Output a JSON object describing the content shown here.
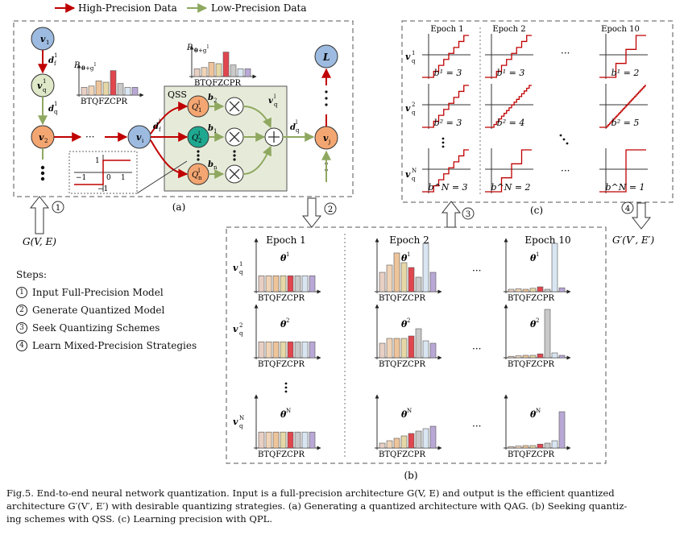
{
  "legend": {
    "high": "High-Precision Data",
    "low": "Low-Precision Data"
  },
  "panel_a": {
    "label": "(a)",
    "qss": "QSS",
    "nodes": {
      "v1": "v",
      "v1_sub": "1",
      "vq1": "v",
      "vq1_sub": "q",
      "vq1_sup": "1",
      "v2": "v",
      "v2_sub": "2",
      "vi": "v",
      "vi_sub": "i",
      "vj": "v",
      "vj_sub": "j",
      "L": "L"
    },
    "edge_df1": "d",
    "edge_df1_sub": "f",
    "edge_df1_sup": "1",
    "edge_dq1": "d",
    "edge_dq1_sub": "q",
    "edge_dq1_sup": "1",
    "edge_dfl": "d",
    "edge_dfl_sub": "f",
    "edge_dfl_sup": "l",
    "edge_dql": "d",
    "edge_dql_sub": "q",
    "edge_dql_sup": "l",
    "hist_label": "P",
    "hist_label_sub": "θ",
    "hist_label_sup": "l",
    "hist_label_rest": "+g",
    "hist_label_rest_sup": "l",
    "bt_label": "BTQFZCPR",
    "q_nodes": [
      {
        "base": "Q",
        "sup": "l",
        "sub": "1"
      },
      {
        "base": "Q",
        "sup": "l",
        "sub": "2"
      },
      {
        "base": "Q",
        "sup": "l",
        "sub": "n"
      }
    ],
    "b_labels": [
      {
        "base": "b",
        "sub": "2"
      },
      {
        "base": "b",
        "sub": "1"
      },
      {
        "base": "b",
        "sub": "n"
      }
    ],
    "vq_l": "v",
    "vq_l_sub": "q",
    "vq_l_sup": "l",
    "step_ticks": {
      "one_top": "1",
      "minus_one": "−1",
      "zero": "0",
      "one_right": "1",
      "minus_one_bottom": "−1"
    },
    "ellipsis": "···"
  },
  "panel_b": {
    "label": "(b)",
    "epochs": [
      "Epoch 1",
      "Epoch 2",
      "Epoch 10"
    ],
    "rows": [
      {
        "label": "v",
        "sub": "q",
        "sup": "1",
        "theta": "θ",
        "theta_sup": "1"
      },
      {
        "label": "v",
        "sub": "q",
        "sup": "2",
        "theta": "θ",
        "theta_sup": "2"
      },
      {
        "label": "v",
        "sub": "q",
        "sup": "N",
        "theta": "θ",
        "theta_sup": "N"
      }
    ],
    "bt_label": "BTQFZCPR",
    "hist_values": [
      [
        [
          0.33,
          0.33,
          0.33,
          0.33,
          0.33,
          0.33,
          0.33,
          0.33
        ],
        [
          0.4,
          0.55,
          0.8,
          0.6,
          0.5,
          0.3,
          1.0,
          0.4
        ],
        [
          0.05,
          0.06,
          0.05,
          0.07,
          0.1,
          0.05,
          1.0,
          0.08
        ]
      ],
      [
        [
          0.33,
          0.33,
          0.33,
          0.33,
          0.33,
          0.33,
          0.33,
          0.33
        ],
        [
          0.3,
          0.4,
          0.4,
          0.4,
          0.45,
          0.6,
          0.35,
          0.3
        ],
        [
          0.03,
          0.04,
          0.05,
          0.05,
          0.08,
          1.0,
          0.1,
          0.05
        ]
      ],
      [
        [
          0.33,
          0.33,
          0.33,
          0.33,
          0.33,
          0.33,
          0.33,
          0.33
        ],
        [
          0.1,
          0.15,
          0.2,
          0.25,
          0.3,
          0.35,
          0.4,
          0.45
        ],
        [
          0.03,
          0.04,
          0.05,
          0.05,
          0.08,
          0.1,
          0.15,
          0.75
        ]
      ]
    ]
  },
  "panel_c": {
    "label": "(c)",
    "epochs": [
      "Epoch 1",
      "Epoch 2",
      "Epoch 10"
    ],
    "rows": [
      {
        "label": "v",
        "sub": "q",
        "sup": "1"
      },
      {
        "label": "v",
        "sub": "q",
        "sup": "2"
      },
      {
        "label": "v",
        "sub": "q",
        "sup": "N"
      }
    ],
    "bits": [
      [
        "b¹ = 3",
        "b¹ = 3",
        "b¹ = 2"
      ],
      [
        "b² = 3",
        "b² = 4",
        "b² = 5"
      ],
      [
        "b^N = 3",
        "b^N = 2",
        "b^N = 1"
      ]
    ],
    "bit_values": [
      [
        3,
        3,
        2
      ],
      [
        3,
        4,
        5
      ],
      [
        3,
        2,
        1
      ]
    ]
  },
  "arrows": {
    "one": "1",
    "two": "2",
    "three": "3",
    "four": "4",
    "input": "G(V, E)",
    "output": "G′(V′, E′)"
  },
  "steps": {
    "title": "Steps:",
    "items": [
      {
        "num": "1",
        "text": "Input Full-Precision Model"
      },
      {
        "num": "2",
        "text": "Generate Quantized Model"
      },
      {
        "num": "3",
        "text": "Seek Quantizing Schemes"
      },
      {
        "num": "4",
        "text": "Learn Mixed-Precision Strategies"
      }
    ]
  },
  "caption": {
    "line1": "Fig.5.  End-to-end neural network quantization. Input is a full-precision architecture G(V, E) and output is the efficient quantized",
    "line2": "architecture G′(V′, E′) with desirable quantizing strategies. (a) Generating a quantized architecture with QAG. (b) Seeking quantiz-",
    "line3": "ing schemes with QSS. (c) Learning precision with QPL."
  },
  "colors": {
    "red": "#c00000",
    "green": "#8fa860",
    "blue": "#9dbbe0",
    "orange": "#f4a672",
    "teal": "#1fa890",
    "qss_bg": "#e6ebd9",
    "lavender": "#cfcfe6",
    "vq": "#dfe8c8"
  }
}
